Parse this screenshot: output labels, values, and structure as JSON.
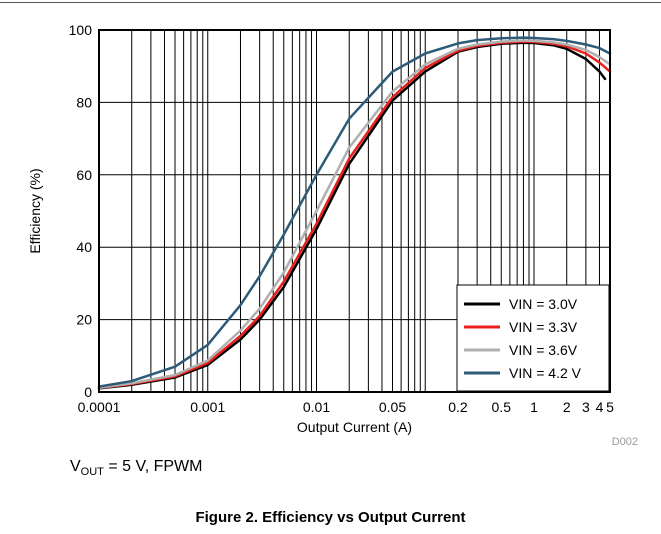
{
  "chart_data": {
    "type": "line",
    "title": "",
    "xlabel": "Output Current (A)",
    "ylabel": "Efficiency (%)",
    "xscale": "log",
    "xlim": [
      0.0001,
      5
    ],
    "ylim": [
      0,
      100
    ],
    "xticks": [
      {
        "value": 0.0001,
        "label": "0.0001"
      },
      {
        "value": 0.001,
        "label": "0.001"
      },
      {
        "value": 0.01,
        "label": "0.01"
      },
      {
        "value": 0.05,
        "label": "0.05"
      },
      {
        "value": 0.2,
        "label": "0.2"
      },
      {
        "value": 0.5,
        "label": "0.5"
      },
      {
        "value": 1,
        "label": "1"
      },
      {
        "value": 2,
        "label": "2"
      },
      {
        "value": 3,
        "label": "3"
      },
      {
        "value": 4,
        "label": "4"
      },
      {
        "value": 5,
        "label": "5"
      }
    ],
    "yticks": [
      0,
      20,
      40,
      60,
      80,
      100
    ],
    "grid": true,
    "legend_position": "bottom-right",
    "series": [
      {
        "name": "VIN = 3.0V",
        "color": "#000000",
        "x": [
          0.0001,
          0.0002,
          0.0005,
          0.001,
          0.002,
          0.003,
          0.005,
          0.01,
          0.02,
          0.05,
          0.1,
          0.2,
          0.3,
          0.5,
          0.8,
          1,
          1.5,
          2,
          3,
          4,
          4.5
        ],
        "y": [
          1,
          2,
          4,
          7.5,
          14.5,
          20,
          29,
          45,
          63,
          80.5,
          88.5,
          94,
          95.3,
          96.2,
          96.5,
          96.4,
          95.8,
          94.8,
          92,
          88.5,
          86.5
        ]
      },
      {
        "name": "VIN = 3.3V",
        "color": "#e8201c",
        "x": [
          0.0001,
          0.0002,
          0.0005,
          0.001,
          0.002,
          0.003,
          0.005,
          0.01,
          0.02,
          0.05,
          0.1,
          0.2,
          0.3,
          0.5,
          0.8,
          1,
          1.5,
          2,
          3,
          4,
          5
        ],
        "y": [
          1.1,
          2.2,
          4.3,
          8,
          15.5,
          21,
          30.5,
          46.5,
          64.5,
          81.5,
          89.5,
          94.3,
          95.6,
          96.5,
          96.8,
          96.7,
          96.2,
          95.5,
          93.5,
          91,
          88.5
        ]
      },
      {
        "name": "VIN = 3.6V",
        "color": "#b0b0b0",
        "x": [
          0.0001,
          0.0002,
          0.0005,
          0.001,
          0.002,
          0.003,
          0.005,
          0.01,
          0.02,
          0.05,
          0.1,
          0.2,
          0.3,
          0.5,
          0.8,
          1,
          1.5,
          2,
          3,
          4,
          5
        ],
        "y": [
          1.2,
          2.4,
          4.7,
          8.7,
          17,
          23,
          33,
          50,
          67.5,
          83,
          90.5,
          94.8,
          96,
          96.8,
          97.1,
          97,
          96.6,
          96,
          94.5,
          92.5,
          90.5
        ]
      },
      {
        "name": "VIN = 4.2 V",
        "color": "#2e5b78",
        "x": [
          0.0001,
          0.0002,
          0.0005,
          0.001,
          0.002,
          0.003,
          0.005,
          0.01,
          0.02,
          0.05,
          0.1,
          0.2,
          0.3,
          0.5,
          0.8,
          1,
          1.5,
          2,
          3,
          4,
          5
        ],
        "y": [
          1.5,
          3,
          7,
          13,
          24,
          32,
          43.5,
          60,
          75.5,
          88.5,
          93.5,
          96.3,
          97.2,
          97.7,
          97.9,
          97.8,
          97.5,
          97,
          96,
          95,
          93.5
        ]
      }
    ]
  },
  "figure_id": "D002",
  "conditions": {
    "v": "V",
    "sub": "OUT",
    "rest": " = 5 V, FPWM"
  },
  "caption": "Figure 2. Efficiency vs Output Current"
}
